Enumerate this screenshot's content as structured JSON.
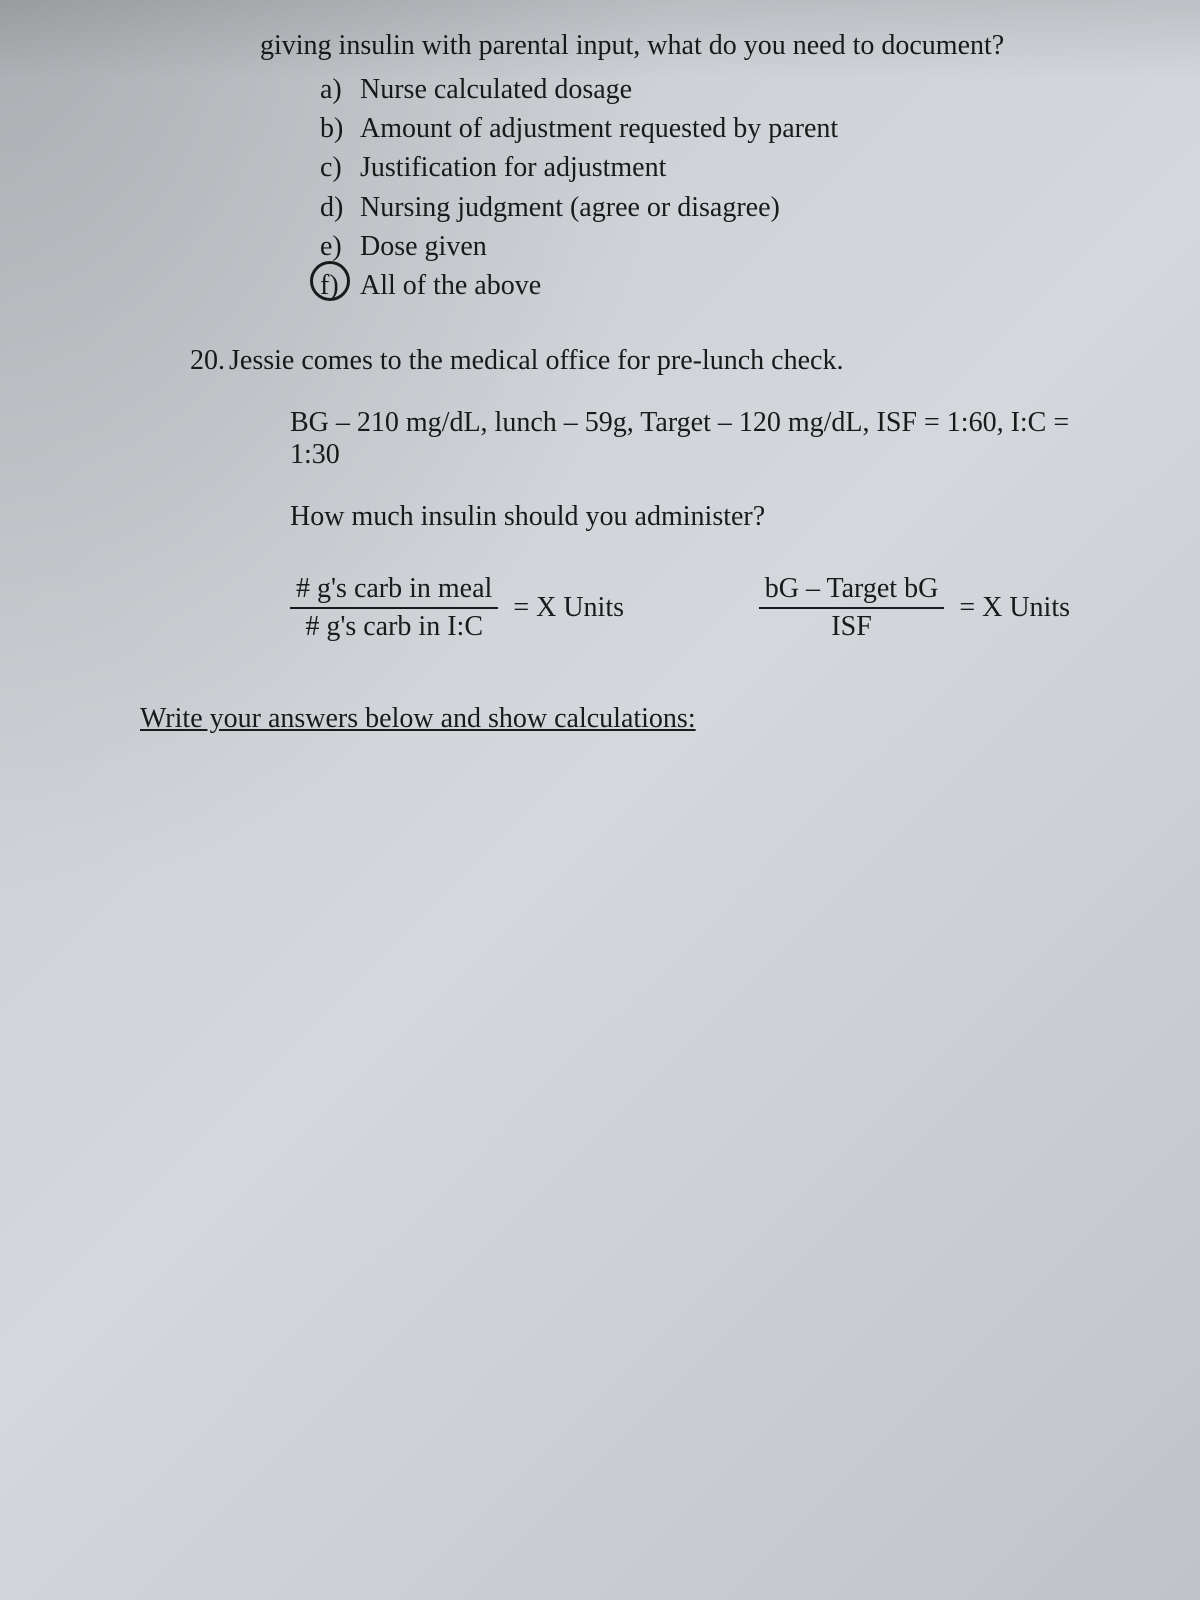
{
  "intro": {
    "line": "giving insulin with parental input, what do you need to document?"
  },
  "options": {
    "a": {
      "label": "a)",
      "text": "Nurse calculated dosage"
    },
    "b": {
      "label": "b)",
      "text": "Amount of adjustment requested by parent"
    },
    "c": {
      "label": "c)",
      "text": "Justification for adjustment"
    },
    "d": {
      "label": "d)",
      "text": "Nursing judgment (agree or disagree)"
    },
    "e": {
      "label": "e)",
      "text": "Dose given"
    },
    "f": {
      "label": "f)",
      "text": "All of the above",
      "circled": true
    }
  },
  "question20": {
    "number": "20.",
    "text": "Jessie comes to the medical office for pre-lunch check.",
    "given": "BG – 210 mg/dL, lunch – 59g, Target – 120 mg/dL, ISF = 1:60, I:C = 1:30",
    "subq": "How much insulin should you administer?"
  },
  "formulas": {
    "carb": {
      "top": "# g's carb in meal",
      "bottom": "# g's carb in I:C",
      "equals": "= X Units"
    },
    "correction": {
      "top": "bG – Target bG",
      "bottom": "ISF",
      "equals": "= X Units"
    }
  },
  "answerPrompt": "Write your answers below and show calculations:",
  "styling": {
    "background": "#d0d4d8",
    "textColor": "#1a1a1a",
    "fontFamily": "Times New Roman",
    "fontSize": 28,
    "circleColor": "#1a1a1a",
    "circleWidth": 3
  }
}
